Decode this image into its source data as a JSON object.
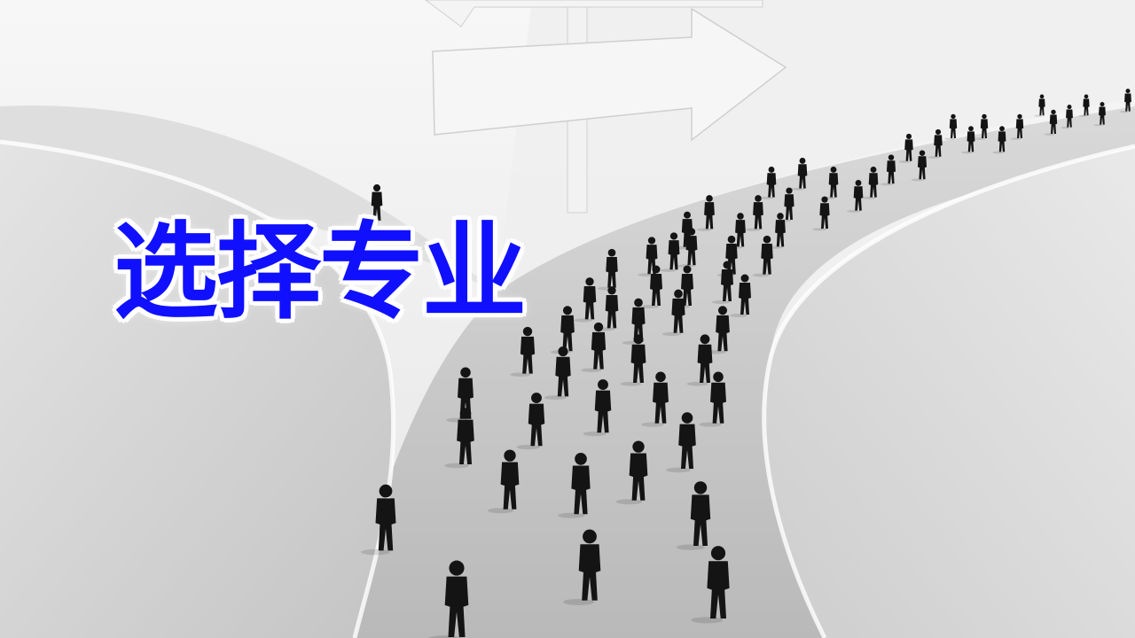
{
  "title": {
    "text": "选择专业",
    "color": "#1010ff",
    "outline": "#ffffff"
  },
  "scene": {
    "palette": {
      "sky": "#f2f2f2",
      "ground": "#dcdcdc",
      "road": "#c8c8c8",
      "figure": "#141414",
      "sign": "#f4f4f4"
    }
  }
}
